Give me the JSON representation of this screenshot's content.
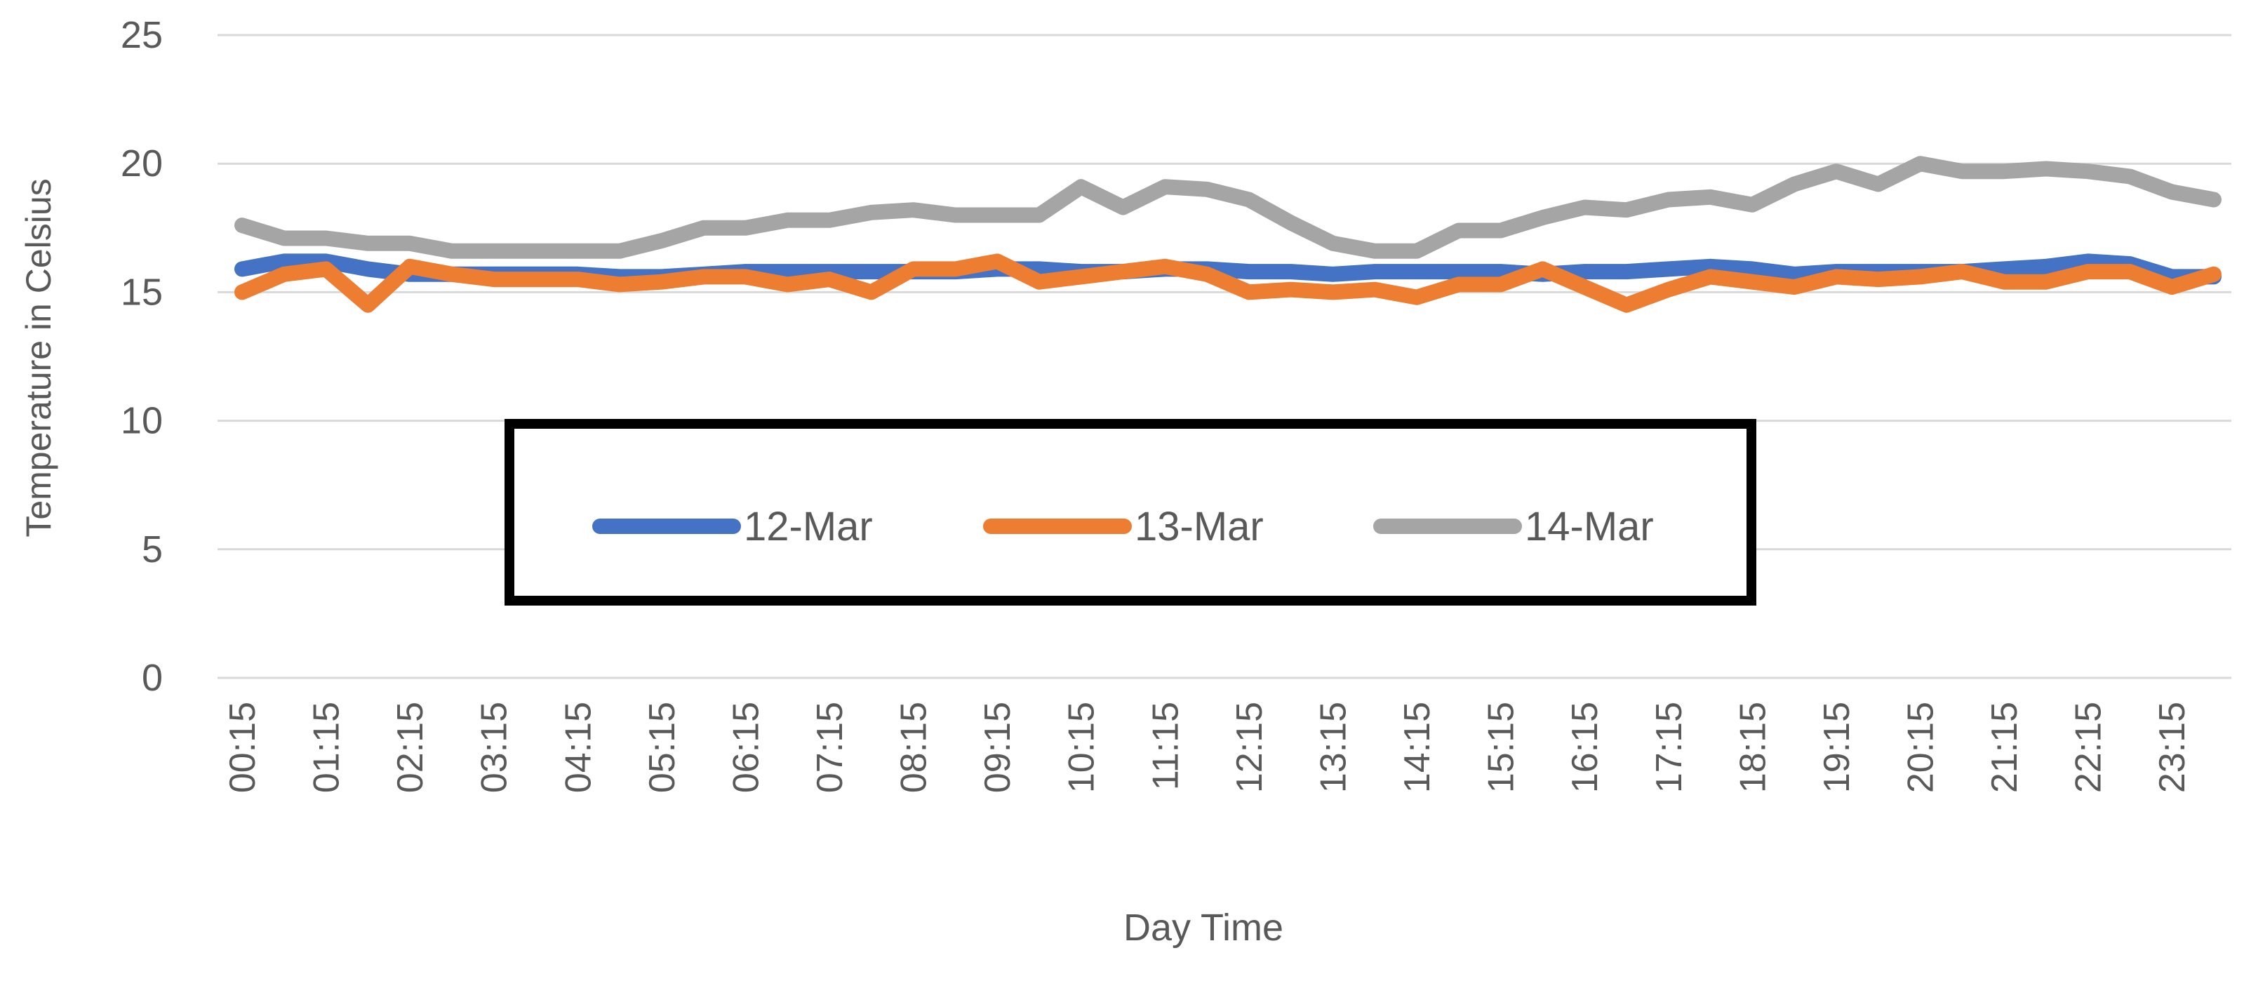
{
  "chart_data": {
    "type": "line",
    "title": "",
    "xlabel": "Day Time",
    "ylabel": "Temperature in Celsius",
    "ylim": [
      0,
      25
    ],
    "yticks": [
      0,
      5,
      10,
      15,
      20,
      25
    ],
    "grid": "horizontal",
    "legend_position": "center",
    "x": [
      "00:15",
      "00:45",
      "01:15",
      "01:45",
      "02:15",
      "02:45",
      "03:15",
      "03:45",
      "04:15",
      "04:45",
      "05:15",
      "05:45",
      "06:15",
      "06:45",
      "07:15",
      "07:45",
      "08:15",
      "08:45",
      "09:15",
      "09:45",
      "10:15",
      "10:45",
      "11:15",
      "11:45",
      "12:15",
      "12:45",
      "13:15",
      "13:45",
      "14:15",
      "14:45",
      "15:15",
      "15:45",
      "16:15",
      "16:45",
      "17:15",
      "17:45",
      "18:15",
      "18:45",
      "19:15",
      "19:45",
      "20:15",
      "20:45",
      "21:15",
      "21:45",
      "22:15",
      "22:45",
      "23:15",
      "23:45"
    ],
    "xtick_labels": [
      "00:15",
      "01:15",
      "02:15",
      "03:15",
      "04:15",
      "05:15",
      "06:15",
      "07:15",
      "08:15",
      "09:15",
      "10:15",
      "11:15",
      "12:15",
      "13:15",
      "14:15",
      "15:15",
      "16:15",
      "17:15",
      "18:15",
      "19:15",
      "20:15",
      "21:15",
      "22:15",
      "23:15"
    ],
    "series": [
      {
        "name": "12-Mar",
        "color": "#4472C4",
        "values": [
          15.9,
          16.2,
          16.2,
          15.9,
          15.7,
          15.7,
          15.7,
          15.7,
          15.7,
          15.6,
          15.6,
          15.7,
          15.8,
          15.8,
          15.8,
          15.8,
          15.8,
          15.8,
          15.9,
          15.9,
          15.8,
          15.8,
          15.9,
          15.9,
          15.8,
          15.8,
          15.7,
          15.8,
          15.8,
          15.8,
          15.8,
          15.7,
          15.8,
          15.8,
          15.9,
          16.0,
          15.9,
          15.7,
          15.8,
          15.8,
          15.8,
          15.8,
          15.9,
          16.0,
          16.2,
          16.1,
          15.6,
          15.6
        ]
      },
      {
        "name": "13-Mar",
        "color": "#ED7D31",
        "values": [
          15.0,
          15.7,
          15.9,
          14.5,
          16.0,
          15.7,
          15.5,
          15.5,
          15.5,
          15.3,
          15.4,
          15.6,
          15.6,
          15.3,
          15.5,
          15.0,
          15.9,
          15.9,
          16.2,
          15.4,
          15.6,
          15.8,
          16.0,
          15.7,
          15.0,
          15.1,
          15.0,
          15.1,
          14.8,
          15.3,
          15.3,
          15.9,
          15.2,
          14.5,
          15.1,
          15.6,
          15.4,
          15.2,
          15.6,
          15.5,
          15.6,
          15.8,
          15.4,
          15.4,
          15.8,
          15.8,
          15.2,
          15.7
        ]
      },
      {
        "name": "14-Mar",
        "color": "#A5A5A5",
        "values": [
          17.6,
          17.1,
          17.1,
          16.9,
          16.9,
          16.6,
          16.6,
          16.6,
          16.6,
          16.6,
          17.0,
          17.5,
          17.5,
          17.8,
          17.8,
          18.1,
          18.2,
          18.0,
          18.0,
          18.0,
          19.1,
          18.3,
          19.1,
          19.0,
          18.6,
          17.7,
          16.9,
          16.6,
          16.6,
          17.4,
          17.4,
          17.9,
          18.3,
          18.2,
          18.6,
          18.7,
          18.4,
          19.2,
          19.7,
          19.2,
          20.0,
          19.7,
          19.7,
          19.8,
          19.7,
          19.5,
          18.9,
          18.6
        ]
      }
    ]
  }
}
